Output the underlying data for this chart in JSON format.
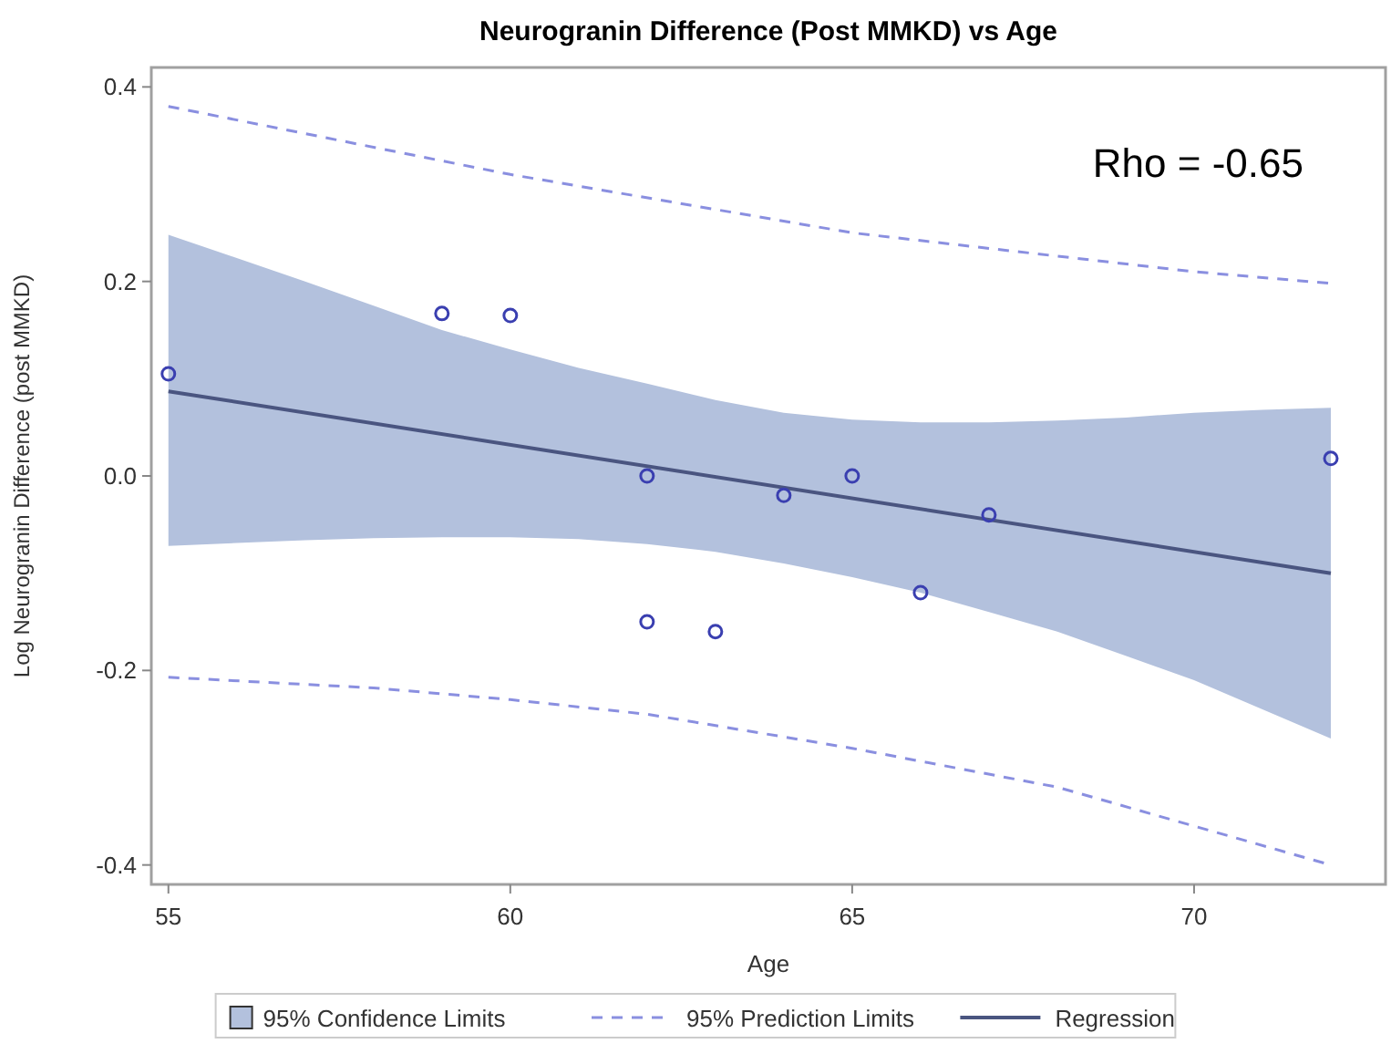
{
  "chart_data": {
    "type": "scatter",
    "title": "Neurogranin Difference (Post MMKD) vs Age",
    "xlabel": "Age",
    "ylabel": "Log Neurogranin Difference (post MMKD)",
    "xlim": [
      54.75,
      72.8
    ],
    "ylim": [
      -0.42,
      0.42
    ],
    "xticks": [
      55,
      60,
      65,
      70
    ],
    "yticks": [
      {
        "value": -0.4,
        "label": "-0.4"
      },
      {
        "value": -0.2,
        "label": "-0.2"
      },
      {
        "value": 0,
        "label": "0.0"
      },
      {
        "value": 0.2,
        "label": "0.2"
      },
      {
        "value": 0.4,
        "label": "0.4"
      }
    ],
    "grid": false,
    "legend": "bottom",
    "annotations": [
      "Rho = -0.65"
    ],
    "series": [
      {
        "type": "line",
        "name": "95% Confidence Limits",
        "color": "#b3c1dd",
        "x": [
          55,
          56,
          57,
          58,
          59,
          60,
          61,
          62,
          63,
          64,
          65,
          66,
          67,
          68,
          69,
          70,
          71,
          72
        ],
        "values": [
          null,
          null,
          null,
          null,
          null,
          null,
          null,
          null,
          null,
          null,
          null,
          null,
          null,
          null,
          null,
          null,
          null,
          null
        ],
        "lower": [
          -0.072,
          -0.069,
          -0.066,
          -0.064,
          -0.063,
          -0.063,
          -0.065,
          -0.07,
          -0.078,
          -0.09,
          -0.104,
          -0.12,
          -0.14,
          -0.16,
          -0.185,
          -0.21,
          -0.24,
          -0.27
        ],
        "upper": [
          0.248,
          0.224,
          0.2,
          0.175,
          0.15,
          0.13,
          0.111,
          0.095,
          0.078,
          0.065,
          0.058,
          0.055,
          0.055,
          0.057,
          0.06,
          0.065,
          0.068,
          0.07
        ]
      },
      {
        "type": "line",
        "name": "95% Prediction Limits",
        "color": "#8a8fe0",
        "line_style": "dashed",
        "x": [
          55,
          60,
          65,
          70,
          72
        ],
        "values": [
          0.38,
          0.31,
          0.25,
          0.21,
          0.198
        ]
      },
      {
        "type": "line",
        "color": "#8a8fe0",
        "line_style": "dashed",
        "x": [
          55,
          58,
          60,
          62,
          65,
          68,
          70,
          72
        ],
        "values": [
          -0.207,
          -0.218,
          -0.23,
          -0.245,
          -0.28,
          -0.32,
          -0.36,
          -0.4
        ]
      },
      {
        "type": "line",
        "name": "Regression",
        "color": "#4a5580",
        "line_style": "solid",
        "x": [
          55,
          72
        ],
        "values": [
          0.087,
          -0.1
        ]
      },
      {
        "color": "#3a3fb0",
        "marker": "circle",
        "x": [
          55,
          59,
          60,
          62,
          62,
          63,
          64,
          65,
          66,
          67,
          72
        ],
        "values": [
          0.105,
          0.167,
          0.165,
          0.0,
          -0.15,
          -0.16,
          -0.02,
          0.0,
          -0.12,
          -0.04,
          0.018
        ]
      }
    ]
  }
}
